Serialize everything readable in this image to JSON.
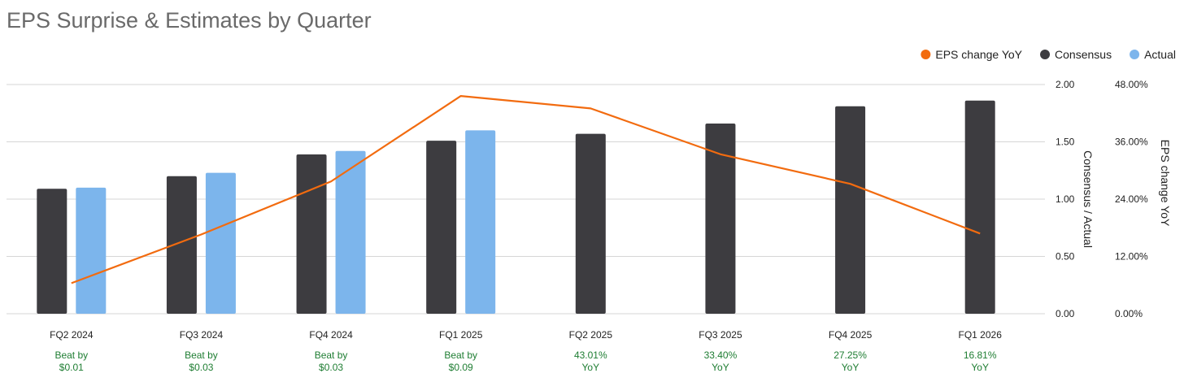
{
  "chart_data": {
    "type": "bar",
    "title": "EPS Surprise & Estimates by Quarter",
    "categories": [
      "FQ2 2024",
      "FQ3 2024",
      "FQ4 2024",
      "FQ1 2025",
      "FQ2 2025",
      "FQ3 2025",
      "FQ4 2025",
      "FQ1 2026"
    ],
    "series": [
      {
        "name": "Consensus",
        "kind": "bar",
        "axis": "left",
        "color": "#3d3c40",
        "values": [
          1.09,
          1.2,
          1.39,
          1.51,
          1.57,
          1.66,
          1.81,
          1.86
        ]
      },
      {
        "name": "Actual",
        "kind": "bar",
        "axis": "left",
        "color": "#7cb5ec",
        "values": [
          1.1,
          1.23,
          1.42,
          1.6,
          null,
          null,
          null,
          null
        ]
      },
      {
        "name": "EPS change YoY",
        "kind": "line",
        "axis": "right",
        "color": "#f26b0f",
        "values": [
          6.4,
          16.6,
          27.7,
          45.6,
          43.0,
          33.4,
          27.2,
          16.8
        ]
      }
    ],
    "legend": {
      "position": "top-right",
      "order": [
        "EPS change YoY",
        "Consensus",
        "Actual"
      ]
    },
    "yleft": {
      "label": "Consensus / Actual",
      "ticks": [
        "0.00",
        "0.50",
        "1.00",
        "1.50",
        "2.00"
      ],
      "min": 0,
      "max": 2
    },
    "yright": {
      "label": "EPS change YoY",
      "ticks": [
        "0.00%",
        "12.00%",
        "24.00%",
        "36.00%",
        "48.00%"
      ],
      "min": 0,
      "max": 48
    },
    "grid": true,
    "notes": [
      [
        "Beat by",
        "$0.01"
      ],
      [
        "Beat by",
        "$0.03"
      ],
      [
        "Beat by",
        "$0.03"
      ],
      [
        "Beat by",
        "$0.09"
      ],
      [
        "43.01%",
        "YoY"
      ],
      [
        "33.40%",
        "YoY"
      ],
      [
        "27.25%",
        "YoY"
      ],
      [
        "16.81%",
        "YoY"
      ]
    ],
    "note_color": "#1e7d32"
  }
}
